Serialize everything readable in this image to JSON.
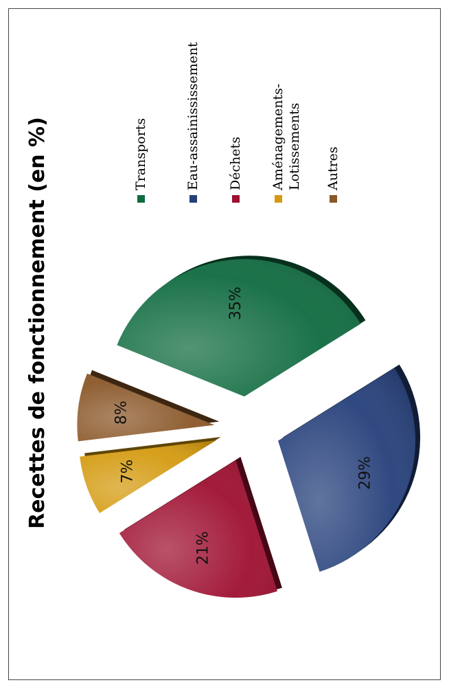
{
  "chart_data": {
    "type": "pie",
    "title": "Recettes de fonctionnement (en %)",
    "slices": [
      {
        "label": "Transports",
        "value": 35,
        "display": "35%",
        "color": "#0f6b40"
      },
      {
        "label": "Eau-assainissement",
        "value": 29,
        "display": "29%",
        "color": "#253f7a"
      },
      {
        "label": "Déchets",
        "value": 21,
        "display": "21%",
        "color": "#9e0f30"
      },
      {
        "label": "Aménagements-Lotissements",
        "value": 7,
        "display": "7%",
        "color": "#d49a0f"
      },
      {
        "label": "Autres",
        "value": 8,
        "display": "8%",
        "color": "#8a5728"
      }
    ],
    "legend": {
      "placement": "right",
      "entries": [
        {
          "lines": [
            "Transports"
          ],
          "color": "#0f6b40"
        },
        {
          "lines": [
            "Eau-assainississement"
          ],
          "color": "#253f7a"
        },
        {
          "lines": [
            "Déchets"
          ],
          "color": "#9e0f30"
        },
        {
          "lines": [
            "Aménagements-",
            "Lotissements"
          ],
          "color": "#d49a0f"
        },
        {
          "lines": [
            "Autres"
          ],
          "color": "#8a5728"
        }
      ]
    }
  }
}
